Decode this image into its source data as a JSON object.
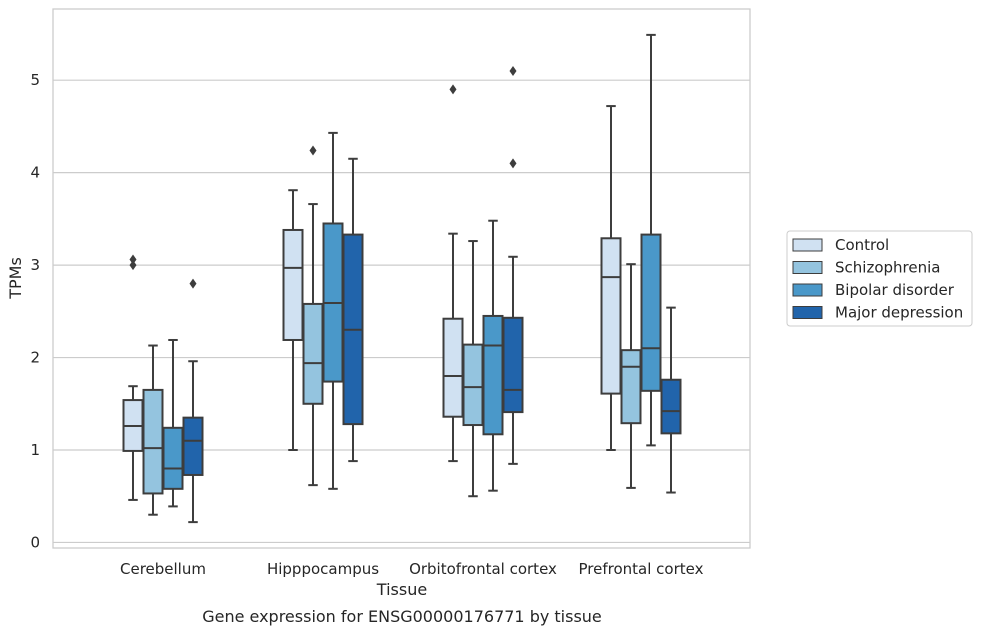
{
  "chart_data": {
    "type": "box",
    "title": "",
    "caption": "Gene expression for ENSG00000176771 by tissue",
    "xlabel": "Tissue",
    "ylabel": "TPMs",
    "ylim": [
      -0.06,
      5.77
    ],
    "yticks": [
      "0",
      "1",
      "2",
      "3",
      "4",
      "5"
    ],
    "grid": "horizontal",
    "legend_position": "outside-right",
    "categories": [
      "Cerebellum",
      "Hipppocampus",
      "Orbitofrontal cortex",
      "Prefrontal cortex"
    ],
    "series": [
      {
        "name": "Control",
        "color": "#d0e1f2",
        "boxes": [
          {
            "whisker_low": 0.46,
            "q1": 0.99,
            "median": 1.26,
            "q3": 1.54,
            "whisker_high": 1.69,
            "outliers": [
              3.0,
              3.06
            ]
          },
          {
            "whisker_low": 1.0,
            "q1": 2.19,
            "median": 2.97,
            "q3": 3.38,
            "whisker_high": 3.81,
            "outliers": []
          },
          {
            "whisker_low": 0.88,
            "q1": 1.36,
            "median": 1.8,
            "q3": 2.42,
            "whisker_high": 3.34,
            "outliers": [
              4.9
            ]
          },
          {
            "whisker_low": 1.0,
            "q1": 1.61,
            "median": 2.87,
            "q3": 3.29,
            "whisker_high": 4.72,
            "outliers": []
          }
        ]
      },
      {
        "name": "Schizophrenia",
        "color": "#94c4df",
        "boxes": [
          {
            "whisker_low": 0.3,
            "q1": 0.53,
            "median": 1.02,
            "q3": 1.65,
            "whisker_high": 2.13,
            "outliers": []
          },
          {
            "whisker_low": 0.62,
            "q1": 1.5,
            "median": 1.94,
            "q3": 2.58,
            "whisker_high": 3.66,
            "outliers": [
              4.24
            ]
          },
          {
            "whisker_low": 0.5,
            "q1": 1.27,
            "median": 1.68,
            "q3": 2.14,
            "whisker_high": 3.26,
            "outliers": []
          },
          {
            "whisker_low": 0.59,
            "q1": 1.29,
            "median": 1.9,
            "q3": 2.08,
            "whisker_high": 3.01,
            "outliers": []
          }
        ]
      },
      {
        "name": "Bipolar disorder",
        "color": "#4a98c9",
        "boxes": [
          {
            "whisker_low": 0.39,
            "q1": 0.58,
            "median": 0.8,
            "q3": 1.24,
            "whisker_high": 2.19,
            "outliers": []
          },
          {
            "whisker_low": 0.58,
            "q1": 1.74,
            "median": 2.59,
            "q3": 3.45,
            "whisker_high": 4.43,
            "outliers": []
          },
          {
            "whisker_low": 0.56,
            "q1": 1.17,
            "median": 2.13,
            "q3": 2.45,
            "whisker_high": 3.48,
            "outliers": []
          },
          {
            "whisker_low": 1.05,
            "q1": 1.64,
            "median": 2.1,
            "q3": 3.33,
            "whisker_high": 5.49,
            "outliers": []
          }
        ]
      },
      {
        "name": "Major depression",
        "color": "#2164ab",
        "boxes": [
          {
            "whisker_low": 0.22,
            "q1": 0.73,
            "median": 1.1,
            "q3": 1.35,
            "whisker_high": 1.96,
            "outliers": [
              2.8
            ]
          },
          {
            "whisker_low": 0.88,
            "q1": 1.28,
            "median": 2.3,
            "q3": 3.33,
            "whisker_high": 4.15,
            "outliers": []
          },
          {
            "whisker_low": 0.85,
            "q1": 1.41,
            "median": 1.65,
            "q3": 2.43,
            "whisker_high": 3.09,
            "outliers": [
              4.1,
              5.1
            ]
          },
          {
            "whisker_low": 0.54,
            "q1": 1.18,
            "median": 1.42,
            "q3": 1.76,
            "whisker_high": 2.54,
            "outliers": []
          }
        ]
      }
    ],
    "colors": {
      "grid": "#cccccc",
      "frame": "#cccccc",
      "box_edge": "#3d3d3d"
    }
  }
}
